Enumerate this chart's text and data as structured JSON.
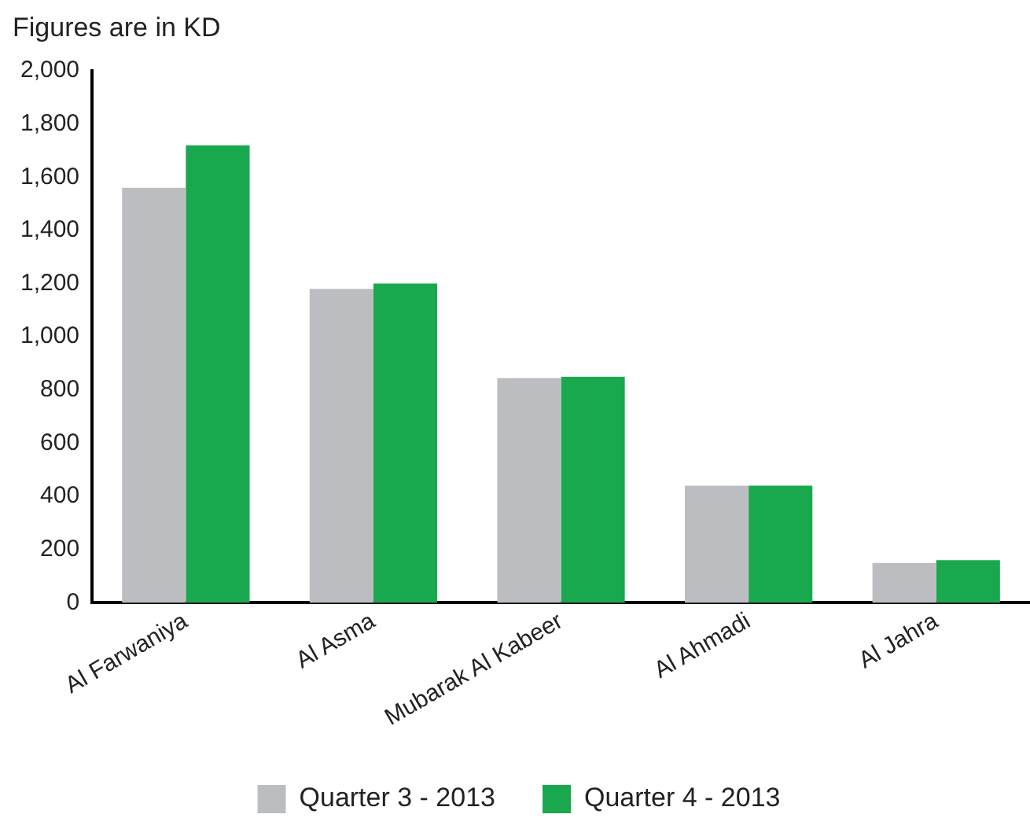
{
  "chart_data": {
    "type": "bar",
    "title": "Figures are in KD",
    "categories": [
      "Al Farwaniya",
      "Al Asma",
      "Mubarak Al Kabeer",
      "Al Ahmadi",
      "Al Jahra"
    ],
    "series": [
      {
        "name": "Quarter 3 - 2013",
        "color": "#bcbdc0",
        "values": [
          1560,
          1180,
          845,
          440,
          150
        ]
      },
      {
        "name": "Quarter 4 - 2013",
        "color": "#1aa84f",
        "values": [
          1720,
          1200,
          850,
          440,
          160
        ]
      }
    ],
    "ylim": [
      0,
      2000
    ],
    "yticks": [
      0,
      {
        "value": 200,
        "label": "200"
      },
      {
        "value": 400,
        "label": "400"
      },
      {
        "value": 600,
        "label": "600"
      },
      {
        "value": 800,
        "label": "800"
      },
      {
        "value": 1000,
        "label": "1,000"
      },
      {
        "value": 1200,
        "label": "1,200"
      },
      {
        "value": 1400,
        "label": "1,400"
      },
      {
        "value": 1600,
        "label": "1,600"
      },
      {
        "value": 1800,
        "label": "1,800"
      },
      {
        "value": 2000,
        "label": "2,000"
      }
    ],
    "grid": false,
    "legend": "bottom"
  }
}
